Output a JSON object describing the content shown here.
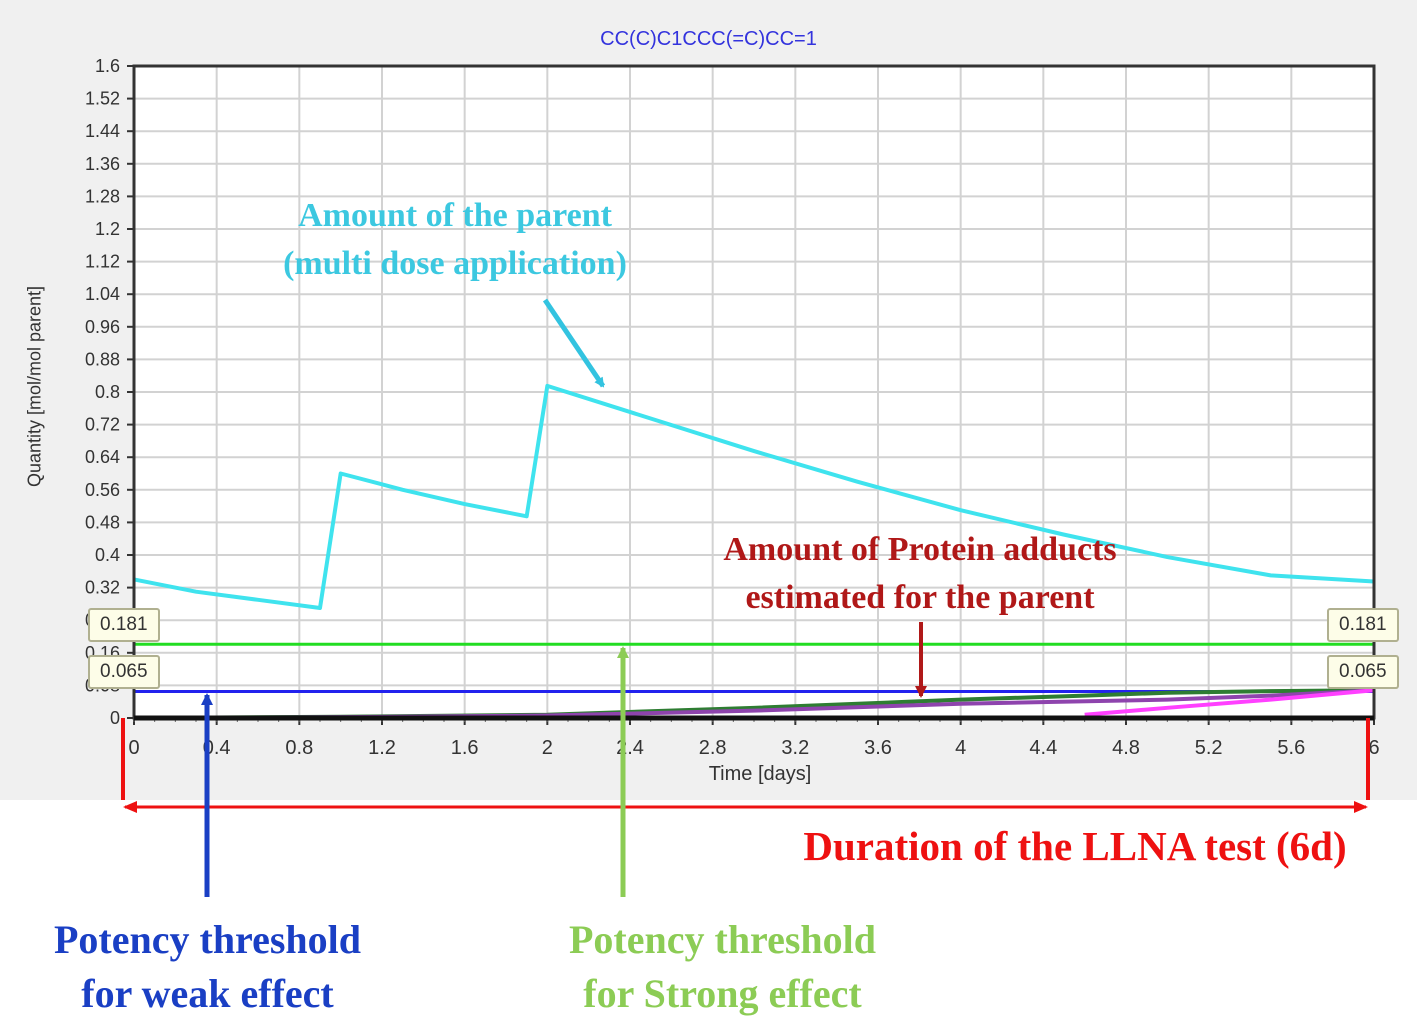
{
  "chart_data": {
    "type": "line",
    "title": "CC(C)C1CCC(=C)CC=1",
    "xlabel": "Time [days]",
    "ylabel": "Quantity [mol/mol parent]",
    "xlim": [
      0,
      6
    ],
    "ylim": [
      0,
      1.6
    ],
    "x_ticks": [
      "0",
      "0.4",
      "0.8",
      "1.2",
      "1.6",
      "2",
      "2.4",
      "2.8",
      "3.2",
      "3.6",
      "4",
      "4.4",
      "4.8",
      "5.2",
      "5.6",
      "6"
    ],
    "y_ticks": [
      "0",
      "0.08",
      "0.16",
      "0.24",
      "0.32",
      "0.4",
      "0.48",
      "0.56",
      "0.64",
      "0.72",
      "0.8",
      "0.88",
      "0.96",
      "1.04",
      "1.12",
      "1.2",
      "1.28",
      "1.36",
      "1.44",
      "1.52",
      "1.6"
    ],
    "grid": true,
    "series": [
      {
        "color": "#3fe3ee",
        "x": [
          0,
          0.3,
          0.6,
          0.9,
          1.0,
          1.3,
          1.6,
          1.9,
          2.0,
          2.5,
          3.0,
          3.5,
          4.0,
          4.5,
          5.0,
          5.5,
          6.0
        ],
        "y": [
          0.34,
          0.31,
          0.29,
          0.27,
          0.6,
          0.56,
          0.525,
          0.495,
          0.815,
          0.735,
          0.655,
          0.58,
          0.51,
          0.45,
          0.395,
          0.35,
          0.335
        ]
      },
      {
        "color": "#2e7d32",
        "x": [
          0,
          1.0,
          2.0,
          3.0,
          4.0,
          4.6,
          5.0,
          5.5,
          6.0
        ],
        "y": [
          0,
          0.003,
          0.008,
          0.025,
          0.045,
          0.055,
          0.062,
          0.066,
          0.068
        ]
      },
      {
        "color": "#8e44ad",
        "x": [
          0,
          1.0,
          2.0,
          3.0,
          4.0,
          5.0,
          5.5,
          6.0
        ],
        "y": [
          0,
          0.002,
          0.006,
          0.018,
          0.035,
          0.045,
          0.055,
          0.068
        ]
      },
      {
        "color": "#ff40ff",
        "x": [
          4.6,
          5.0,
          5.5,
          6.0
        ],
        "y": [
          0.008,
          0.025,
          0.045,
          0.068
        ]
      }
    ],
    "thresholds": [
      {
        "value": 0.181,
        "label": "0.181",
        "color": "#22dd22"
      },
      {
        "value": 0.065,
        "label": "0.065",
        "color": "#2222ee"
      }
    ]
  },
  "annotations": {
    "parent_line1": "Amount of the parent",
    "parent_line2": "(multi dose application)",
    "adducts_line1": "Amount of Protein adducts",
    "adducts_line2": "estimated for the parent",
    "duration": "Duration of the LLNA test (6d)",
    "weak_line1": "Potency threshold",
    "weak_line2": "for weak effect",
    "strong_line1": "Potency threshold",
    "strong_line2": "for Strong effect"
  },
  "colors": {
    "parent": "#3cc8e0",
    "adducts": "#b01818",
    "duration": "#ee1111",
    "weak": "#1a3fc4",
    "strong": "#8ccc55"
  }
}
